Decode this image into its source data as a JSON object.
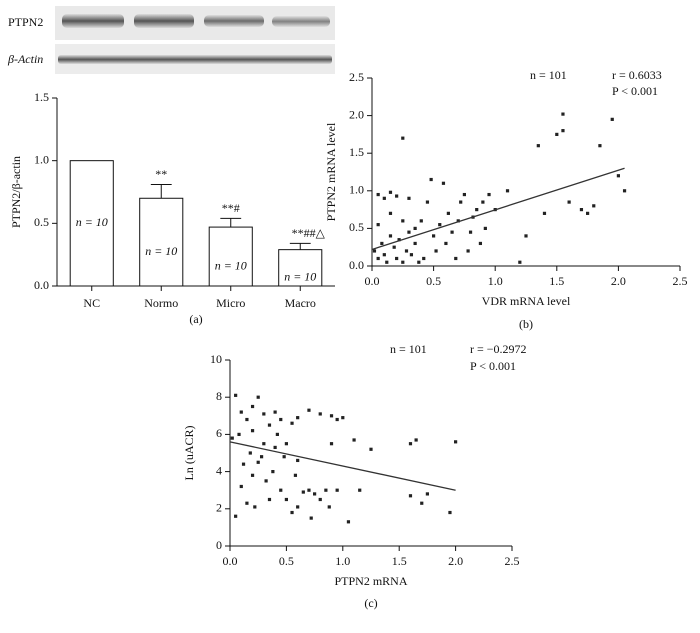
{
  "blot": {
    "labels": [
      "PTPN2",
      "β-Actin"
    ]
  },
  "chart_data": [
    {
      "type": "bar",
      "caption": "(a)",
      "ylabel": "PTPN2/β-actin",
      "categories": [
        "NC",
        "Normo",
        "Micro",
        "Macro"
      ],
      "values": [
        1.0,
        0.7,
        0.47,
        0.29
      ],
      "errors": [
        0,
        0.11,
        0.07,
        0.05
      ],
      "bar_labels": [
        "n = 10",
        "n = 10",
        "n = 10",
        "n = 10"
      ],
      "significance": [
        null,
        "**",
        "**#",
        "**##△"
      ],
      "color": "#ffffff",
      "ylim": [
        0,
        1.5
      ],
      "yticks": [
        {
          "value": 0,
          "label": "0.0"
        },
        {
          "value": 0.5,
          "label": "0.5"
        },
        {
          "value": 1,
          "label": "1.0"
        },
        {
          "value": 1.5,
          "label": "1.5"
        }
      ]
    },
    {
      "type": "scatter",
      "caption": "(b)",
      "xlabel": "VDR mRNA level",
      "ylabel": "PTPN2 mRNA level",
      "annotations": [
        "n = 101",
        "r = 0.6033",
        "P < 0.001"
      ],
      "color": "#222222",
      "x": [
        0.05,
        0.1,
        0.15,
        0.2,
        0.25,
        0.3,
        0.02,
        0.05,
        0.08,
        0.1,
        0.12,
        0.15,
        0.18,
        0.2,
        0.22,
        0.25,
        0.28,
        0.3,
        0.32,
        0.35,
        0.38,
        0.4,
        0.42,
        0.45,
        0.48,
        0.5,
        0.52,
        0.55,
        0.58,
        0.6,
        0.62,
        0.65,
        0.68,
        0.7,
        0.72,
        0.75,
        0.78,
        0.8,
        0.82,
        0.85,
        0.88,
        0.9,
        0.92,
        0.95,
        1.0,
        1.1,
        1.2,
        1.25,
        1.35,
        1.4,
        1.5,
        1.55,
        1.55,
        1.6,
        1.7,
        1.75,
        1.8,
        1.85,
        1.95,
        2.0,
        2.05,
        0.15,
        0.25,
        0.35,
        0.05
      ],
      "values": [
        0.95,
        0.9,
        0.98,
        0.93,
        1.7,
        0.9,
        0.2,
        0.1,
        0.3,
        0.15,
        0.05,
        0.4,
        0.25,
        0.1,
        0.35,
        0.05,
        0.2,
        0.45,
        0.15,
        0.3,
        0.05,
        0.6,
        0.1,
        0.85,
        1.15,
        0.4,
        0.2,
        0.55,
        1.1,
        0.3,
        0.7,
        0.45,
        0.1,
        0.6,
        0.85,
        0.95,
        0.2,
        0.45,
        0.65,
        0.75,
        0.3,
        0.85,
        0.5,
        0.95,
        0.75,
        1.0,
        0.05,
        0.4,
        1.6,
        0.7,
        1.75,
        2.02,
        1.8,
        0.85,
        0.75,
        0.7,
        0.8,
        1.6,
        1.95,
        1.2,
        1.0,
        0.7,
        0.6,
        0.5,
        0.55
      ],
      "fit_line": {
        "x": [
          0,
          2.05
        ],
        "values": [
          0.22,
          1.3
        ]
      },
      "xlim": [
        0,
        2.5
      ],
      "ylim": [
        0,
        2.5
      ],
      "xticks": [
        {
          "value": 0,
          "label": "0.0"
        },
        {
          "value": 0.5,
          "label": "0.5"
        },
        {
          "value": 1,
          "label": "1.0"
        },
        {
          "value": 1.5,
          "label": "1.5"
        },
        {
          "value": 2,
          "label": "2.0"
        },
        {
          "value": 2.5,
          "label": "2.5"
        }
      ],
      "yticks": [
        {
          "value": 0,
          "label": "0.0"
        },
        {
          "value": 0.5,
          "label": "0.5"
        },
        {
          "value": 1,
          "label": "1.0"
        },
        {
          "value": 1.5,
          "label": "1.5"
        },
        {
          "value": 2,
          "label": "2.0"
        },
        {
          "value": 2.5,
          "label": "2.5"
        }
      ]
    },
    {
      "type": "scatter",
      "caption": "(c)",
      "xlabel": "PTPN2 mRNA",
      "ylabel": "Ln (uACR)",
      "annotations": [
        "n = 101",
        "r = −0.2972",
        "P < 0.001"
      ],
      "color": "#222222",
      "x": [
        0.05,
        0.1,
        0.15,
        0.2,
        0.25,
        0.3,
        0.35,
        0.4,
        0.45,
        0.5,
        0.55,
        0.6,
        0.7,
        0.8,
        0.9,
        0.95,
        1.0,
        0.05,
        0.1,
        0.12,
        0.15,
        0.18,
        0.2,
        0.22,
        0.25,
        0.3,
        0.32,
        0.35,
        0.38,
        0.4,
        0.45,
        0.48,
        0.5,
        0.55,
        0.58,
        0.6,
        0.65,
        0.7,
        0.72,
        0.75,
        0.8,
        0.85,
        0.88,
        0.9,
        0.95,
        1.05,
        1.1,
        1.15,
        1.25,
        1.6,
        1.6,
        1.65,
        1.7,
        1.75,
        1.95,
        2.0,
        0.08,
        0.2,
        0.28,
        0.42,
        0.6,
        0.02
      ],
      "values": [
        8.1,
        7.2,
        6.8,
        7.5,
        8.0,
        7.1,
        6.5,
        7.2,
        6.8,
        5.5,
        6.6,
        6.9,
        7.3,
        7.1,
        7.0,
        6.8,
        6.9,
        1.6,
        3.2,
        4.4,
        2.3,
        5.0,
        3.8,
        2.1,
        4.5,
        5.5,
        3.5,
        2.5,
        4.0,
        5.3,
        3.0,
        4.8,
        2.5,
        1.8,
        3.8,
        2.1,
        2.9,
        3.0,
        1.5,
        2.8,
        2.5,
        3.0,
        2.1,
        5.5,
        3.0,
        1.3,
        5.7,
        3.0,
        5.2,
        2.7,
        5.5,
        5.7,
        2.3,
        2.8,
        1.8,
        5.6,
        6.0,
        6.2,
        4.8,
        6.0,
        4.6,
        5.8
      ],
      "fit_line": {
        "x": [
          0,
          2.0
        ],
        "values": [
          5.6,
          3.0
        ]
      },
      "xlim": [
        0,
        2.5
      ],
      "ylim": [
        0,
        10
      ],
      "xticks": [
        {
          "value": 0,
          "label": "0.0"
        },
        {
          "value": 0.5,
          "label": "0.5"
        },
        {
          "value": 1,
          "label": "1.0"
        },
        {
          "value": 1.5,
          "label": "1.5"
        },
        {
          "value": 2,
          "label": "2.0"
        },
        {
          "value": 2.5,
          "label": "2.5"
        }
      ],
      "yticks": [
        0,
        2,
        4,
        6,
        8,
        10
      ]
    }
  ]
}
